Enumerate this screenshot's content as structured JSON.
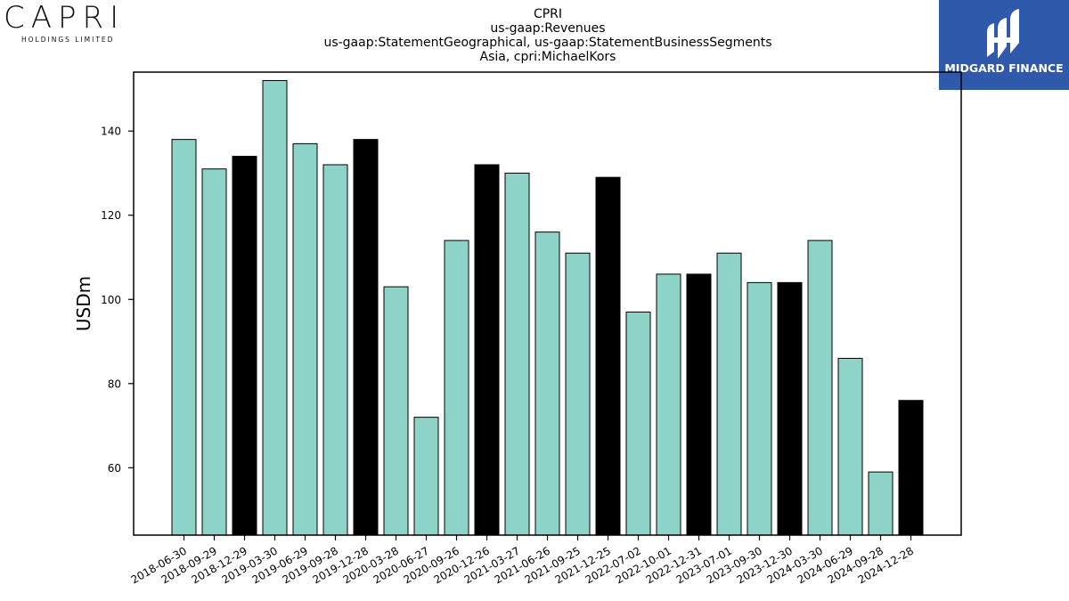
{
  "logo_left": {
    "word": "CAPRI",
    "sub": "HOLDINGS LIMITED"
  },
  "logo_right": {
    "text": "MIDGARD FINANCE",
    "bg_color": "#2f5aab"
  },
  "chart_data": {
    "type": "bar",
    "title_lines": [
      "CPRI",
      "us-gaap:Revenues",
      "us-gaap:StatementGeographical, us-gaap:StatementBusinessSegments",
      "Asia, cpri:MichaelKors"
    ],
    "ylabel": "USDm",
    "xlabel": "",
    "ylim": [
      44,
      154
    ],
    "yticks": [
      60,
      80,
      100,
      120,
      140
    ],
    "grid": false,
    "colors": {
      "normal": "#8dd3c7",
      "q4": "#000000"
    },
    "categories": [
      "2018-06-30",
      "2018-09-29",
      "2018-12-29",
      "2019-03-30",
      "2019-06-29",
      "2019-09-28",
      "2019-12-28",
      "2020-03-28",
      "2020-06-27",
      "2020-09-26",
      "2020-12-26",
      "2021-03-27",
      "2021-06-26",
      "2021-09-25",
      "2021-12-25",
      "2022-07-02",
      "2022-10-01",
      "2022-12-31",
      "2023-07-01",
      "2023-09-30",
      "2023-12-30",
      "2024-03-30",
      "2024-06-29",
      "2024-09-28",
      "2024-12-28"
    ],
    "values": [
      138,
      131,
      134,
      152,
      137,
      132,
      138,
      103,
      72,
      114,
      132,
      130,
      116,
      111,
      129,
      97,
      106,
      106,
      111,
      104,
      104,
      114,
      86,
      59,
      76
    ],
    "highlight": [
      false,
      false,
      true,
      false,
      false,
      false,
      true,
      false,
      false,
      false,
      true,
      false,
      false,
      false,
      true,
      false,
      false,
      true,
      false,
      false,
      true,
      false,
      false,
      false,
      true
    ]
  }
}
